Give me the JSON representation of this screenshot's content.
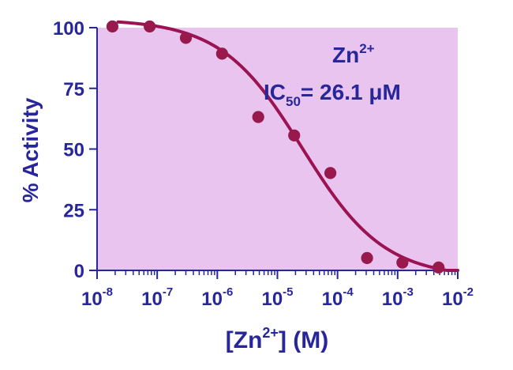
{
  "colors": {
    "plot_background": "#e8c4ee",
    "text_axis": "#27269a",
    "curve": "#9b1353",
    "marker": "#981a4c"
  },
  "chart_data": {
    "type": "scatter",
    "x_scale": "log",
    "xlim": [
      1e-08,
      0.01
    ],
    "ylim": [
      0,
      100
    ],
    "x_ticks": [
      1e-08,
      1e-07,
      1e-06,
      1e-05,
      0.0001,
      0.001,
      0.01
    ],
    "x_tick_labels": [
      {
        "base": "10",
        "exp": "-8"
      },
      {
        "base": "10",
        "exp": "-7"
      },
      {
        "base": "10",
        "exp": "-6"
      },
      {
        "base": "10",
        "exp": "-5"
      },
      {
        "base": "10",
        "exp": "-4"
      },
      {
        "base": "10",
        "exp": "-3"
      },
      {
        "base": "10",
        "exp": "-2"
      }
    ],
    "y_ticks": [
      0,
      25,
      50,
      75,
      100
    ],
    "y_tick_labels": [
      "0",
      "25",
      "50",
      "75",
      "100"
    ],
    "ylabel": "% Activity",
    "xlabel_parts": {
      "prefix": "[Zn",
      "sup": "2+",
      "suffix": "] (M)"
    },
    "annotation": {
      "line1_base": "Zn",
      "line1_sup": "2+",
      "line2_base": "IC",
      "line2_sub": "50",
      "line2_value": "= 26.1 μM"
    },
    "points": [
      {
        "x": 1.8e-08,
        "y": 100.5
      },
      {
        "x": 7.5e-08,
        "y": 100.5
      },
      {
        "x": 3e-07,
        "y": 95.8
      },
      {
        "x": 1.2e-06,
        "y": 89.3
      },
      {
        "x": 4.8e-06,
        "y": 63.2
      },
      {
        "x": 1.9e-05,
        "y": 55.6
      },
      {
        "x": 7.6e-05,
        "y": 40.1
      },
      {
        "x": 0.00031,
        "y": 5.1
      },
      {
        "x": 0.0012,
        "y": 3.2
      },
      {
        "x": 0.0048,
        "y": 1.2
      }
    ],
    "fit": {
      "model": "four-parameter logistic",
      "bottom": -3.0,
      "top": 103.5,
      "ic50": 2.61e-05,
      "hill": 0.64
    }
  }
}
